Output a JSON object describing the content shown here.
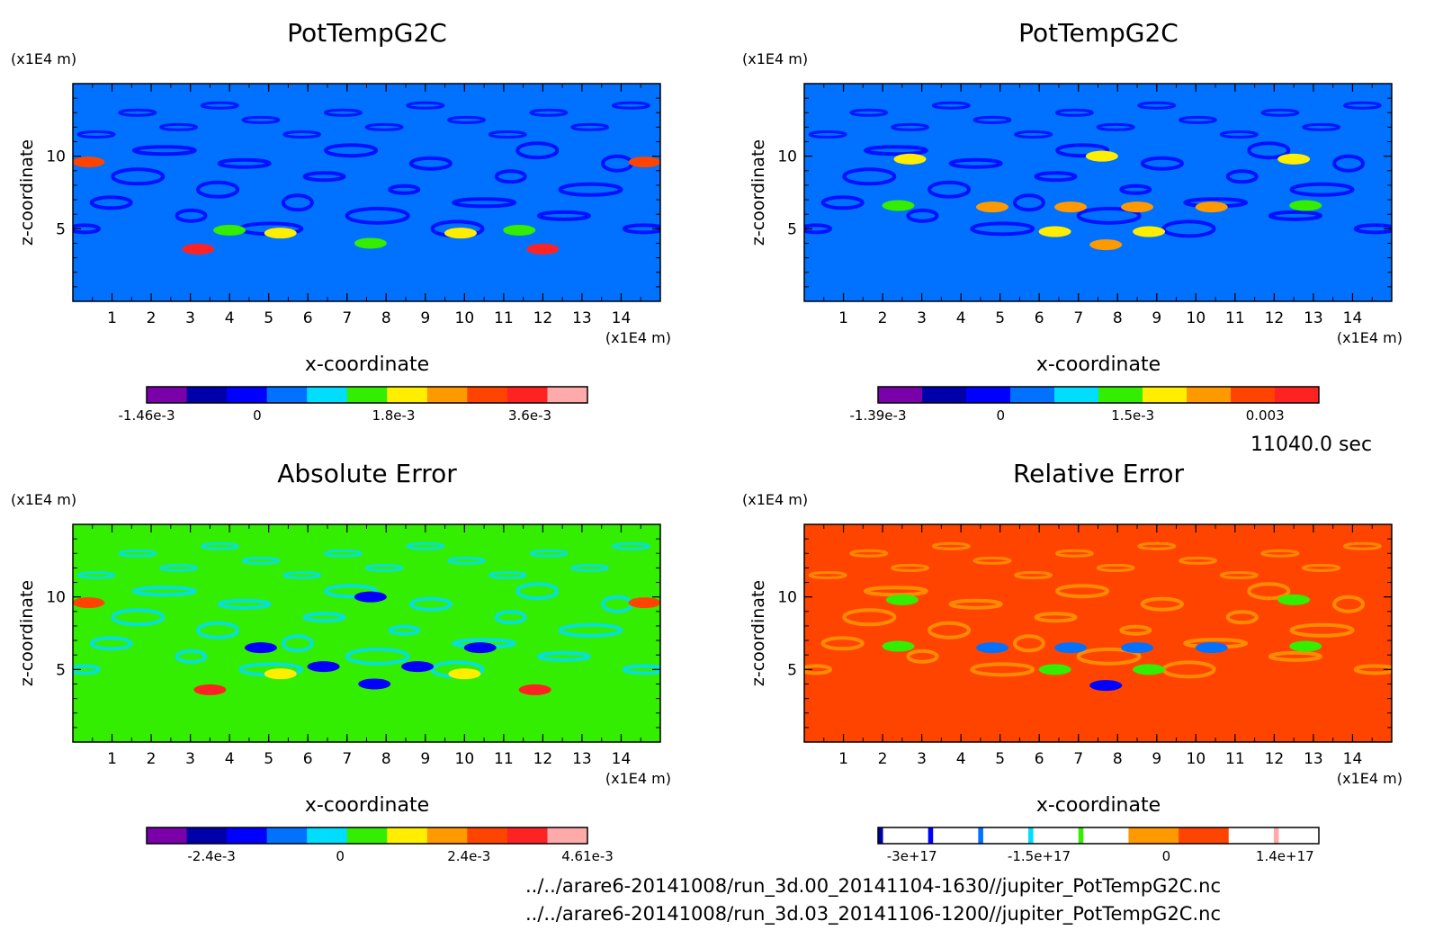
{
  "time_label": "11040.0 sec",
  "files": [
    "../../arare6-20141008/run_3d.00_20141104-1630//jupiter_PotTempG2C.nc",
    "../../arare6-20141008/run_3d.03_20141106-1200//jupiter_PotTempG2C.nc"
  ],
  "colors": {
    "levels_11": [
      "#7a00aa",
      "#0000aa",
      "#0000ff",
      "#0072ff",
      "#00ddff",
      "#33ee00",
      "#ffee00",
      "#ff9900",
      "#ff4400",
      "#ff2222",
      "#ffaaaa"
    ],
    "levels_10": [
      "#7a00aa",
      "#0000aa",
      "#0000ff",
      "#0072ff",
      "#00ddff",
      "#33ee00",
      "#ffee00",
      "#ff9900",
      "#ff4400",
      "#ff2222"
    ]
  },
  "chart_data": [
    {
      "type": "heatmap",
      "title": "PotTempG2C",
      "xlabel": "x-coordinate",
      "ylabel": "z-coordinate",
      "x_unit": "(x1E4 m)",
      "z_unit": "(x1E4 m)",
      "xlim": [
        0,
        15
      ],
      "zlim": [
        0,
        15
      ],
      "x_ticks": [
        1,
        2,
        3,
        4,
        5,
        6,
        7,
        8,
        9,
        10,
        11,
        12,
        13,
        14
      ],
      "z_ticks": [
        5,
        10
      ],
      "background_color": "#0072ff",
      "colorbar": {
        "colors": [
          "#7a00aa",
          "#0000aa",
          "#0000ff",
          "#0072ff",
          "#00ddff",
          "#33ee00",
          "#ffee00",
          "#ff9900",
          "#ff4400",
          "#ff2222",
          "#ffaaaa"
        ],
        "labels": [
          {
            "text": "-1.46e-3",
            "value": -0.00146
          },
          {
            "text": "0",
            "value": 0
          },
          {
            "text": "1.8e-3",
            "value": 0.0018
          },
          {
            "text": "3.6e-3",
            "value": 0.0036
          }
        ],
        "range": [
          -0.00146,
          0.00436
        ]
      },
      "features": [
        {
          "x": 3.2,
          "z": 3.6,
          "color": "#ff2222"
        },
        {
          "x": 12.0,
          "z": 3.6,
          "color": "#ff2222"
        },
        {
          "x": 5.3,
          "z": 4.7,
          "color": "#ffee00"
        },
        {
          "x": 9.9,
          "z": 4.7,
          "color": "#ffee00"
        },
        {
          "x": 0.4,
          "z": 9.6,
          "color": "#ff4400"
        },
        {
          "x": 14.6,
          "z": 9.6,
          "color": "#ff4400"
        },
        {
          "x": 7.6,
          "z": 4.0,
          "color": "#33ee00"
        },
        {
          "x": 4.0,
          "z": 4.9,
          "color": "#33ee00"
        },
        {
          "x": 11.4,
          "z": 4.9,
          "color": "#33ee00"
        }
      ]
    },
    {
      "type": "heatmap",
      "title": "PotTempG2C",
      "xlabel": "x-coordinate",
      "ylabel": "z-coordinate",
      "x_unit": "(x1E4 m)",
      "z_unit": "(x1E4 m)",
      "xlim": [
        0,
        15
      ],
      "zlim": [
        0,
        15
      ],
      "x_ticks": [
        1,
        2,
        3,
        4,
        5,
        6,
        7,
        8,
        9,
        10,
        11,
        12,
        13,
        14
      ],
      "z_ticks": [
        5,
        10
      ],
      "background_color": "#0072ff",
      "colorbar": {
        "colors": [
          "#7a00aa",
          "#0000aa",
          "#0000ff",
          "#0072ff",
          "#00ddff",
          "#33ee00",
          "#ffee00",
          "#ff9900",
          "#ff4400",
          "#ff2222"
        ],
        "labels": [
          {
            "text": "-1.39e-3",
            "value": -0.00139
          },
          {
            "text": "0",
            "value": 0
          },
          {
            "text": "1.5e-3",
            "value": 0.0015
          },
          {
            "text": "0.003",
            "value": 0.003
          }
        ],
        "range": [
          -0.00139,
          0.00361
        ]
      },
      "features": [
        {
          "x": 7.7,
          "z": 3.9,
          "color": "#ff9900"
        },
        {
          "x": 6.4,
          "z": 4.8,
          "color": "#ffee00"
        },
        {
          "x": 8.8,
          "z": 4.8,
          "color": "#ffee00"
        },
        {
          "x": 4.8,
          "z": 6.5,
          "color": "#ff9900"
        },
        {
          "x": 6.8,
          "z": 6.5,
          "color": "#ff9900"
        },
        {
          "x": 8.5,
          "z": 6.5,
          "color": "#ff9900"
        },
        {
          "x": 10.4,
          "z": 6.5,
          "color": "#ff9900"
        },
        {
          "x": 7.6,
          "z": 10.0,
          "color": "#ffee00"
        },
        {
          "x": 2.7,
          "z": 9.8,
          "color": "#ffee00"
        },
        {
          "x": 12.5,
          "z": 9.8,
          "color": "#ffee00"
        },
        {
          "x": 2.4,
          "z": 6.6,
          "color": "#33ee00"
        },
        {
          "x": 12.8,
          "z": 6.6,
          "color": "#33ee00"
        }
      ]
    },
    {
      "type": "heatmap",
      "title": "Absolute Error",
      "xlabel": "x-coordinate",
      "ylabel": "z-coordinate",
      "x_unit": "(x1E4 m)",
      "z_unit": "(x1E4 m)",
      "xlim": [
        0,
        15
      ],
      "zlim": [
        0,
        15
      ],
      "x_ticks": [
        1,
        2,
        3,
        4,
        5,
        6,
        7,
        8,
        9,
        10,
        11,
        12,
        13,
        14
      ],
      "z_ticks": [
        5,
        10
      ],
      "background_color": "#33ee00",
      "colorbar": {
        "colors": [
          "#7a00aa",
          "#0000aa",
          "#0000ff",
          "#0072ff",
          "#00ddff",
          "#33ee00",
          "#ffee00",
          "#ff9900",
          "#ff4400",
          "#ff2222",
          "#ffaaaa"
        ],
        "labels": [
          {
            "text": "-2.4e-3",
            "value": -0.0024
          },
          {
            "text": "0",
            "value": 0
          },
          {
            "text": "2.4e-3",
            "value": 0.0024
          },
          {
            "text": "4.61e-3",
            "value": 0.00461
          }
        ],
        "range": [
          -0.00361,
          0.00461
        ]
      },
      "features": [
        {
          "x": 3.5,
          "z": 3.6,
          "color": "#ff2222"
        },
        {
          "x": 11.8,
          "z": 3.6,
          "color": "#ff2222"
        },
        {
          "x": 5.3,
          "z": 4.7,
          "color": "#ffee00"
        },
        {
          "x": 10.0,
          "z": 4.7,
          "color": "#ffee00"
        },
        {
          "x": 7.7,
          "z": 4.0,
          "color": "#0000ff"
        },
        {
          "x": 6.4,
          "z": 5.2,
          "color": "#0000ff"
        },
        {
          "x": 8.8,
          "z": 5.2,
          "color": "#0000ff"
        },
        {
          "x": 0.4,
          "z": 9.6,
          "color": "#ff4400"
        },
        {
          "x": 14.6,
          "z": 9.6,
          "color": "#ff4400"
        },
        {
          "x": 7.6,
          "z": 10.0,
          "color": "#0000ff"
        },
        {
          "x": 4.8,
          "z": 6.5,
          "color": "#0000ff"
        },
        {
          "x": 10.4,
          "z": 6.5,
          "color": "#0000ff"
        }
      ]
    },
    {
      "type": "heatmap",
      "title": "Relative Error",
      "xlabel": "x-coordinate",
      "ylabel": "z-coordinate",
      "x_unit": "(x1E4 m)",
      "z_unit": "(x1E4 m)",
      "xlim": [
        0,
        15
      ],
      "zlim": [
        0,
        15
      ],
      "x_ticks": [
        1,
        2,
        3,
        4,
        5,
        6,
        7,
        8,
        9,
        10,
        11,
        12,
        13,
        14
      ],
      "z_ticks": [
        5,
        10
      ],
      "background_color": "#ff4400",
      "colorbar": {
        "colors": [
          "#0000aa",
          "#ffffff",
          "#0000ff",
          "#ffffff",
          "#0072ff",
          "#ffffff",
          "#00ddff",
          "#ffffff",
          "#33ee00",
          "#ffffff",
          "#ff9900",
          "#ff4400",
          "#ffffff",
          "#ffaaaa",
          "#ffffff"
        ],
        "widths": [
          1,
          9,
          1,
          9,
          1,
          9,
          1,
          9,
          1,
          9,
          10,
          10,
          9,
          1,
          8
        ],
        "labels": [
          {
            "text": "-3e+17",
            "value": -3e+17
          },
          {
            "text": "-1.5e+17",
            "value": -1.5e+17
          },
          {
            "text": "0",
            "value": 0
          },
          {
            "text": "1.4e+17",
            "value": 1.4e+17
          }
        ],
        "range": [
          -3.4e+17,
          1.8e+17
        ]
      },
      "features": [
        {
          "x": 7.7,
          "z": 3.9,
          "color": "#0000ff"
        },
        {
          "x": 6.4,
          "z": 5.0,
          "color": "#33ee00"
        },
        {
          "x": 8.8,
          "z": 5.0,
          "color": "#33ee00"
        },
        {
          "x": 4.8,
          "z": 6.5,
          "color": "#0072ff"
        },
        {
          "x": 6.8,
          "z": 6.5,
          "color": "#0072ff"
        },
        {
          "x": 8.5,
          "z": 6.5,
          "color": "#0072ff"
        },
        {
          "x": 10.4,
          "z": 6.5,
          "color": "#0072ff"
        },
        {
          "x": 2.5,
          "z": 9.8,
          "color": "#33ee00"
        },
        {
          "x": 12.5,
          "z": 9.8,
          "color": "#33ee00"
        },
        {
          "x": 2.4,
          "z": 6.6,
          "color": "#33ee00"
        },
        {
          "x": 12.8,
          "z": 6.6,
          "color": "#33ee00"
        }
      ]
    }
  ]
}
